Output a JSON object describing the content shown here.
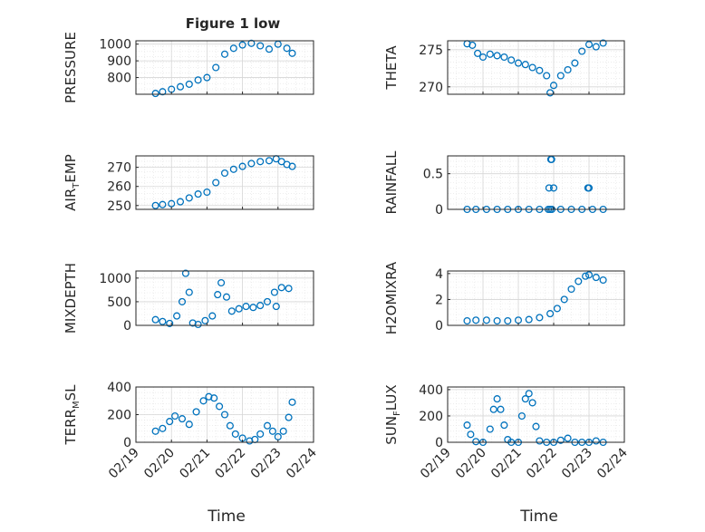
{
  "figure": {
    "title": "Figure 1 low",
    "xlabel": "Time",
    "x_ticks": [
      "02/19",
      "02/20",
      "02/21",
      "02/22",
      "02/23",
      "02/24"
    ],
    "marker_color": "#0072BD",
    "marker": "open-circle"
  },
  "chart_data": [
    {
      "type": "scatter",
      "ylabel": "PRESSURE",
      "xlabel": "",
      "grid": true,
      "xlim": [
        "02/19",
        "02/24"
      ],
      "ylim": [
        700,
        1020
      ],
      "ytick_labels": [
        "800",
        "900",
        "1000"
      ],
      "ytick_values": [
        800,
        900,
        1000
      ],
      "x_day": [
        0.55,
        0.75,
        1.0,
        1.25,
        1.5,
        1.75,
        2.0,
        2.25,
        2.5,
        2.75,
        3.0,
        3.25,
        3.5,
        3.75,
        4.0,
        4.25,
        4.4
      ],
      "y": [
        705,
        715,
        730,
        745,
        760,
        785,
        800,
        860,
        940,
        975,
        995,
        1005,
        990,
        970,
        1000,
        975,
        945
      ]
    },
    {
      "type": "scatter",
      "ylabel": "THETA",
      "xlabel": "",
      "grid": true,
      "xlim": [
        "02/19",
        "02/24"
      ],
      "ylim": [
        269,
        276.2
      ],
      "ytick_labels": [
        "270",
        "275"
      ],
      "ytick_values": [
        270,
        275
      ],
      "x_day": [
        0.55,
        0.7,
        0.85,
        1.0,
        1.2,
        1.4,
        1.6,
        1.8,
        2.0,
        2.2,
        2.4,
        2.6,
        2.8,
        2.9,
        3.0,
        3.2,
        3.4,
        3.6,
        3.8,
        4.0,
        4.2,
        4.4
      ],
      "y": [
        275.8,
        275.6,
        274.5,
        274.0,
        274.4,
        274.2,
        274.0,
        273.6,
        273.2,
        273.0,
        272.6,
        272.2,
        271.5,
        269.2,
        270.2,
        271.5,
        272.3,
        273.2,
        274.8,
        275.7,
        275.4,
        275.9
      ]
    },
    {
      "type": "scatter",
      "ylabel": "AIR_TEMP",
      "xlabel": "",
      "grid": true,
      "xlim": [
        "02/19",
        "02/24"
      ],
      "ylim": [
        248,
        276
      ],
      "ytick_labels": [
        "250",
        "260",
        "270"
      ],
      "ytick_values": [
        250,
        260,
        270
      ],
      "x_day": [
        0.55,
        0.75,
        1.0,
        1.25,
        1.5,
        1.75,
        2.0,
        2.25,
        2.5,
        2.75,
        3.0,
        3.25,
        3.5,
        3.75,
        3.95,
        4.1,
        4.25,
        4.4
      ],
      "y": [
        250,
        250.5,
        251,
        252,
        254,
        256,
        257,
        262,
        267,
        269,
        270.5,
        272,
        273,
        273.5,
        274.5,
        273,
        271.5,
        270.5
      ]
    },
    {
      "type": "scatter",
      "ylabel": "RAINFALL",
      "xlabel": "",
      "grid": true,
      "xlim": [
        "02/19",
        "02/24"
      ],
      "ylim": [
        0,
        0.75
      ],
      "ytick_labels": [
        "0",
        "0.5"
      ],
      "ytick_values": [
        0,
        0.5
      ],
      "x_day": [
        0.55,
        0.8,
        1.1,
        1.4,
        1.7,
        2.0,
        2.3,
        2.6,
        2.85,
        2.9,
        2.95,
        3.2,
        3.5,
        3.8,
        4.1,
        4.4,
        2.92,
        2.94,
        2.87,
        3.0,
        3.97,
        4.0
      ],
      "y": [
        0,
        0,
        0,
        0,
        0,
        0,
        0,
        0,
        0,
        0,
        0,
        0,
        0,
        0,
        0,
        0,
        0.7,
        0.7,
        0.3,
        0.3,
        0.3,
        0.3
      ]
    },
    {
      "type": "scatter",
      "ylabel": "MIXDEPTH",
      "xlabel": "",
      "grid": true,
      "xlim": [
        "02/19",
        "02/24"
      ],
      "ylim": [
        0,
        1150
      ],
      "ytick_labels": [
        "0",
        "500",
        "1000"
      ],
      "ytick_values": [
        0,
        500,
        1000
      ],
      "x_day": [
        0.55,
        0.75,
        0.95,
        1.15,
        1.3,
        1.4,
        1.5,
        1.6,
        1.75,
        1.95,
        2.15,
        2.3,
        2.4,
        2.55,
        2.7,
        2.9,
        3.1,
        3.3,
        3.5,
        3.7,
        3.9,
        3.95,
        4.1,
        4.3
      ],
      "y": [
        120,
        80,
        40,
        200,
        500,
        1100,
        700,
        50,
        20,
        100,
        200,
        650,
        900,
        600,
        300,
        350,
        400,
        380,
        420,
        500,
        700,
        400,
        800,
        780
      ]
    },
    {
      "type": "scatter",
      "ylabel": "H2OMIXRA",
      "xlabel": "",
      "grid": true,
      "xlim": [
        "02/19",
        "02/24"
      ],
      "ylim": [
        0,
        4.2
      ],
      "ytick_labels": [
        "0",
        "2",
        "4"
      ],
      "ytick_values": [
        0,
        2,
        4
      ],
      "x_day": [
        0.55,
        0.8,
        1.1,
        1.4,
        1.7,
        2.0,
        2.3,
        2.6,
        2.9,
        3.1,
        3.3,
        3.5,
        3.7,
        3.9,
        4.0,
        4.2,
        4.4
      ],
      "y": [
        0.35,
        0.4,
        0.4,
        0.35,
        0.35,
        0.4,
        0.45,
        0.6,
        0.9,
        1.3,
        2.0,
        2.8,
        3.4,
        3.8,
        3.9,
        3.7,
        3.5
      ]
    },
    {
      "type": "scatter",
      "ylabel": "TERR_MSL",
      "xlabel": "",
      "grid": true,
      "xlim": [
        "02/19",
        "02/24"
      ],
      "ylim": [
        0,
        400
      ],
      "ytick_labels": [
        "0",
        "200",
        "400"
      ],
      "ytick_values": [
        0,
        200,
        400
      ],
      "x_day": [
        0.55,
        0.75,
        0.95,
        1.1,
        1.3,
        1.5,
        1.7,
        1.9,
        2.05,
        2.2,
        2.35,
        2.5,
        2.65,
        2.8,
        3.0,
        3.2,
        3.35,
        3.5,
        3.7,
        3.85,
        4.0,
        4.15,
        4.3,
        4.4
      ],
      "y": [
        80,
        100,
        150,
        190,
        170,
        130,
        220,
        300,
        330,
        320,
        260,
        200,
        120,
        60,
        30,
        10,
        20,
        60,
        120,
        80,
        40,
        80,
        180,
        290
      ]
    },
    {
      "type": "scatter",
      "ylabel": "SUN_FLUX",
      "xlabel": "",
      "grid": true,
      "xlim": [
        "02/19",
        "02/24"
      ],
      "ylim": [
        0,
        420
      ],
      "ytick_labels": [
        "0",
        "200",
        "400"
      ],
      "ytick_values": [
        0,
        200,
        400
      ],
      "x_day": [
        0.55,
        0.65,
        0.8,
        1.0,
        1.2,
        1.3,
        1.4,
        1.5,
        1.6,
        1.7,
        1.8,
        2.0,
        2.1,
        2.2,
        2.3,
        2.4,
        2.5,
        2.6,
        2.8,
        3.0,
        3.2,
        3.4,
        3.6,
        3.8,
        4.0,
        4.2,
        4.4
      ],
      "y": [
        130,
        60,
        5,
        0,
        100,
        250,
        330,
        250,
        130,
        20,
        0,
        0,
        200,
        330,
        370,
        300,
        120,
        10,
        0,
        0,
        15,
        30,
        0,
        0,
        0,
        10,
        0
      ]
    }
  ]
}
